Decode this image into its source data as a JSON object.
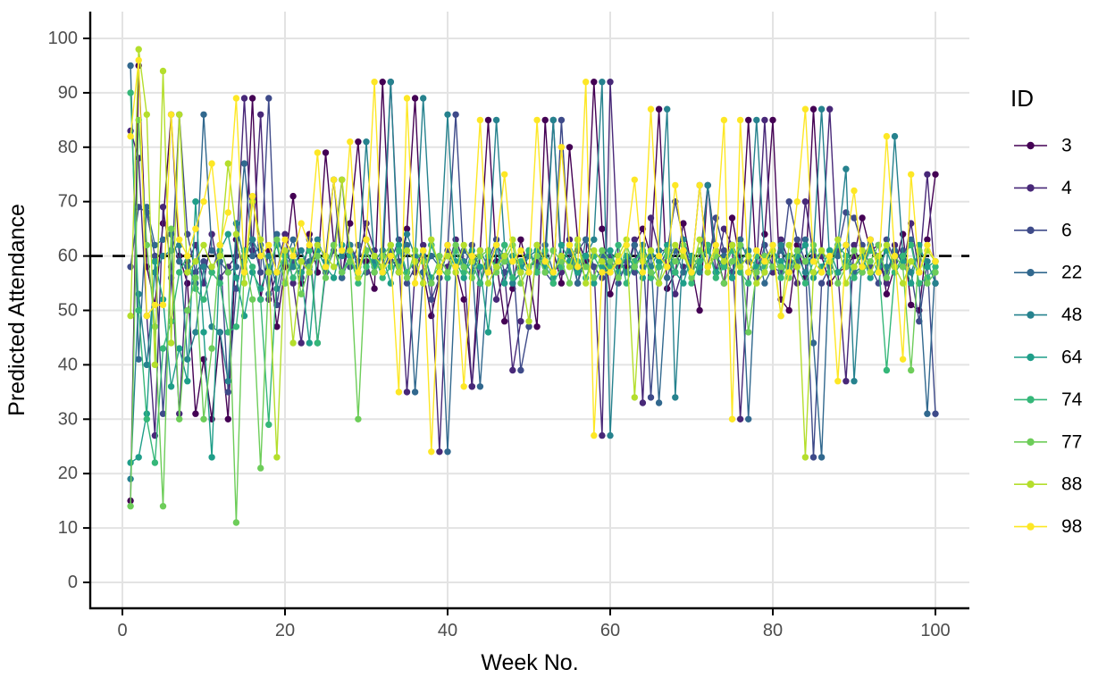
{
  "figure_title": "",
  "axes": {
    "x_title": "Week No.",
    "y_title": "Predicted Attendance",
    "x_ticks": [
      0,
      20,
      40,
      60,
      80,
      100
    ],
    "y_ticks": [
      0,
      10,
      20,
      30,
      40,
      50,
      60,
      70,
      80,
      90,
      100
    ]
  },
  "legend": {
    "title": "ID"
  },
  "chart_data": {
    "type": "line",
    "xlabel": "Week No.",
    "ylabel": "Predicted Attendance",
    "legend_title": "ID",
    "legend_position": "right",
    "grid": "major",
    "x_axis_range": [
      0,
      105
    ],
    "y_axis_range": [
      0,
      100
    ],
    "x_tick_labels": [
      0,
      20,
      40,
      60,
      80,
      100
    ],
    "y_tick_labels": [
      0,
      10,
      20,
      30,
      40,
      50,
      60,
      70,
      80,
      90,
      100
    ],
    "reference_line": {
      "y": 60,
      "style": "dashed",
      "color": "#000000"
    },
    "weeks_start": 1,
    "weeks_end": 100,
    "series": [
      {
        "id": "3",
        "color": "#440154",
        "values": [
          15,
          95,
          58,
          51,
          66,
          86,
          60,
          55,
          31,
          41,
          30,
          46,
          30,
          63,
          57,
          89,
          52,
          61,
          47,
          58,
          71,
          55,
          64,
          57,
          79,
          62,
          56,
          66,
          81,
          59,
          54,
          92,
          60,
          57,
          65,
          89,
          57,
          49,
          56,
          62,
          58,
          52,
          36,
          61,
          85,
          59,
          48,
          54,
          63,
          57,
          47,
          85,
          61,
          55,
          80,
          63,
          59,
          92,
          65,
          53,
          58,
          58,
          62,
          65,
          60,
          87,
          54,
          57,
          66,
          58,
          50,
          73,
          61,
          55,
          67,
          59,
          85,
          57,
          64,
          85,
          52,
          50,
          62,
          56,
          87,
          60,
          55,
          57,
          58,
          60,
          67,
          61,
          62,
          53,
          58,
          64,
          51,
          50,
          63,
          75
        ]
      },
      {
        "id": "4",
        "color": "#482878",
        "values": [
          83,
          78,
          49,
          27,
          69,
          58,
          31,
          59,
          62,
          55,
          64,
          56,
          58,
          60,
          89,
          61,
          86,
          52,
          57,
          64,
          55,
          44,
          58,
          62,
          60,
          74,
          57,
          62,
          59,
          66,
          61,
          57,
          92,
          59,
          35,
          57,
          62,
          55,
          24,
          58,
          63,
          59,
          36,
          55,
          61,
          52,
          57,
          39,
          48,
          58,
          59,
          61,
          85,
          57,
          63,
          55,
          60,
          58,
          27,
          92,
          59,
          57,
          63,
          33,
          67,
          61,
          61,
          53,
          58,
          58,
          59,
          73,
          57,
          65,
          62,
          30,
          57,
          58,
          85,
          57,
          63,
          59,
          55,
          70,
          60,
          60,
          87,
          57,
          37,
          62,
          57,
          63,
          59,
          55,
          62,
          58,
          66,
          57,
          75,
          55
        ]
      },
      {
        "id": "6",
        "color": "#3E4A89",
        "values": [
          58,
          69,
          68,
          60,
          31,
          56,
          86,
          64,
          57,
          59,
          57,
          62,
          35,
          54,
          61,
          63,
          57,
          89,
          51,
          60,
          59,
          56,
          63,
          44,
          57,
          61,
          74,
          58,
          62,
          57,
          57,
          61,
          59,
          63,
          55,
          58,
          60,
          52,
          56,
          61,
          86,
          58,
          62,
          55,
          59,
          63,
          57,
          60,
          39,
          47,
          62,
          57,
          55,
          85,
          59,
          61,
          63,
          58,
          56,
          60,
          55,
          59,
          57,
          62,
          34,
          58,
          61,
          70,
          63,
          57,
          73,
          58,
          67,
          61,
          57,
          63,
          59,
          56,
          62,
          58,
          57,
          70,
          63,
          59,
          23,
          55,
          58,
          61,
          68,
          67,
          62,
          58,
          55,
          63,
          59,
          61,
          57,
          48,
          59,
          31
        ]
      },
      {
        "id": "22",
        "color": "#31688E",
        "values": [
          95,
          41,
          69,
          62,
          63,
          64,
          59,
          58,
          55,
          86,
          61,
          59,
          57,
          58,
          77,
          60,
          62,
          53,
          64,
          59,
          63,
          57,
          59,
          61,
          58,
          62,
          56,
          60,
          57,
          63,
          59,
          57,
          61,
          58,
          62,
          35,
          57,
          60,
          58,
          24,
          57,
          61,
          59,
          36,
          58,
          62,
          60,
          55,
          57,
          61,
          58,
          62,
          57,
          59,
          61,
          55,
          63,
          60,
          60,
          58,
          59,
          57,
          62,
          58,
          60,
          33,
          56,
          61,
          57,
          60,
          58,
          62,
          57,
          60,
          56,
          63,
          30,
          61,
          55,
          58,
          61,
          57,
          59,
          63,
          44,
          23,
          61,
          60,
          62,
          57,
          58,
          62,
          60,
          57,
          61,
          59,
          63,
          55,
          31,
          59
        ]
      },
      {
        "id": "48",
        "color": "#26828E",
        "values": [
          19,
          53,
          40,
          57,
          60,
          61,
          62,
          41,
          46,
          58,
          47,
          46,
          37,
          66,
          59,
          63,
          60,
          60,
          54,
          61,
          58,
          61,
          57,
          63,
          59,
          74,
          60,
          62,
          58,
          81,
          59,
          61,
          92,
          57,
          64,
          60,
          89,
          62,
          58,
          86,
          58,
          59,
          57,
          61,
          58,
          85,
          62,
          55,
          57,
          60,
          61,
          58,
          85,
          59,
          61,
          57,
          60,
          63,
          92,
          27,
          60,
          57,
          59,
          62,
          58,
          61,
          87,
          34,
          63,
          59,
          57,
          73,
          60,
          58,
          62,
          59,
          61,
          85,
          60,
          58,
          62,
          58,
          60,
          57,
          61,
          87,
          59,
          62,
          76,
          37,
          60,
          62,
          58,
          58,
          82,
          60,
          57,
          61,
          59,
          55
        ]
      },
      {
        "id": "64",
        "color": "#1F9E89",
        "values": [
          22,
          23,
          31,
          59,
          52,
          36,
          43,
          37,
          70,
          46,
          23,
          61,
          64,
          56,
          49,
          57,
          54,
          58,
          62,
          55,
          60,
          57,
          44,
          61,
          58,
          56,
          62,
          59,
          57,
          61,
          58,
          60,
          55,
          62,
          57,
          59,
          61,
          56,
          58,
          60,
          59,
          56,
          61,
          58,
          46,
          62,
          55,
          60,
          58,
          57,
          61,
          58,
          56,
          62,
          59,
          57,
          60,
          55,
          58,
          61,
          57,
          60,
          58,
          56,
          61,
          59,
          62,
          57,
          55,
          60,
          58,
          61,
          57,
          59,
          56,
          62,
          60,
          58,
          57,
          61,
          59,
          57,
          60,
          62,
          56,
          58,
          61,
          57,
          59,
          58,
          60,
          56,
          58,
          61,
          57,
          59,
          55,
          62,
          58,
          59
        ]
      },
      {
        "id": "74",
        "color": "#35B779",
        "values": [
          90,
          50,
          30,
          22,
          43,
          48,
          57,
          60,
          54,
          52,
          57,
          55,
          46,
          47,
          61,
          58,
          52,
          29,
          57,
          60,
          56,
          59,
          61,
          44,
          58,
          62,
          57,
          60,
          55,
          58,
          60,
          56,
          58,
          61,
          57,
          59,
          55,
          62,
          58,
          56,
          61,
          57,
          59,
          55,
          60,
          58,
          62,
          56,
          59,
          61,
          57,
          61,
          55,
          58,
          62,
          59,
          56,
          60,
          57,
          58,
          62,
          55,
          59,
          61,
          56,
          58,
          60,
          57,
          61,
          55,
          59,
          62,
          56,
          58,
          61,
          57,
          55,
          60,
          58,
          62,
          56,
          60,
          58,
          55,
          59,
          61,
          57,
          62,
          60,
          56,
          58,
          61,
          59,
          39,
          57,
          60,
          62,
          55,
          56,
          58
        ]
      },
      {
        "id": "77",
        "color": "#6DCD59",
        "values": [
          14,
          85,
          62,
          47,
          14,
          65,
          30,
          50,
          56,
          30,
          43,
          62,
          57,
          11,
          60,
          52,
          21,
          57,
          63,
          55,
          61,
          53,
          58,
          60,
          56,
          62,
          57,
          59,
          30,
          61,
          57,
          60,
          62,
          58,
          56,
          61,
          59,
          55,
          60,
          57,
          62,
          58,
          56,
          60,
          61,
          57,
          59,
          62,
          55,
          58,
          60,
          57,
          61,
          59,
          55,
          62,
          58,
          56,
          61,
          59,
          56,
          62,
          58,
          60,
          57,
          55,
          61,
          59,
          62,
          56,
          61,
          58,
          60,
          55,
          59,
          62,
          46,
          57,
          60,
          58,
          58,
          56,
          61,
          59,
          62,
          57,
          60,
          55,
          58,
          61,
          57,
          59,
          62,
          56,
          60,
          58,
          39,
          61,
          55,
          57
        ]
      },
      {
        "id": "88",
        "color": "#B4DE2C",
        "values": [
          49,
          98,
          86,
          40,
          94,
          44,
          86,
          57,
          59,
          62,
          58,
          60,
          77,
          64,
          55,
          70,
          63,
          57,
          23,
          61,
          44,
          59,
          57,
          62,
          60,
          58,
          74,
          61,
          56,
          63,
          60,
          58,
          62,
          57,
          61,
          59,
          55,
          63,
          58,
          60,
          57,
          62,
          59,
          61,
          55,
          58,
          60,
          63,
          57,
          48,
          62,
          59,
          57,
          60,
          58,
          63,
          55,
          61,
          59,
          57,
          60,
          63,
          34,
          59,
          61,
          55,
          58,
          62,
          60,
          57,
          63,
          57,
          61,
          59,
          62,
          58,
          60,
          55,
          57,
          61,
          49,
          62,
          58,
          23,
          57,
          61,
          59,
          63,
          55,
          58,
          61,
          57,
          60,
          62,
          58,
          55,
          59,
          57,
          61,
          59
        ]
      },
      {
        "id": "98",
        "color": "#FDE725",
        "values": [
          82,
          96,
          49,
          51,
          51,
          86,
          63,
          60,
          65,
          70,
          77,
          62,
          68,
          89,
          57,
          71,
          60,
          62,
          57,
          63,
          60,
          66,
          62,
          79,
          58,
          74,
          61,
          81,
          57,
          63,
          92,
          57,
          60,
          35,
          89,
          55,
          61,
          24,
          57,
          62,
          58,
          36,
          60,
          85,
          57,
          62,
          75,
          59,
          61,
          57,
          85,
          59,
          57,
          80,
          62,
          58,
          92,
          27,
          57,
          57,
          59,
          62,
          74,
          57,
          87,
          60,
          58,
          73,
          61,
          57,
          73,
          58,
          62,
          85,
          30,
          85,
          57,
          61,
          59,
          62,
          49,
          57,
          70,
          87,
          59,
          57,
          60,
          37,
          62,
          72,
          58,
          63,
          57,
          82,
          60,
          41,
          75,
          57,
          62,
          59
        ]
      }
    ]
  },
  "style": {
    "grid_color": "#E3E3E3",
    "axis_color": "#000000",
    "tick_label_color": "#4D4D4D",
    "background": "#FFFFFF"
  }
}
